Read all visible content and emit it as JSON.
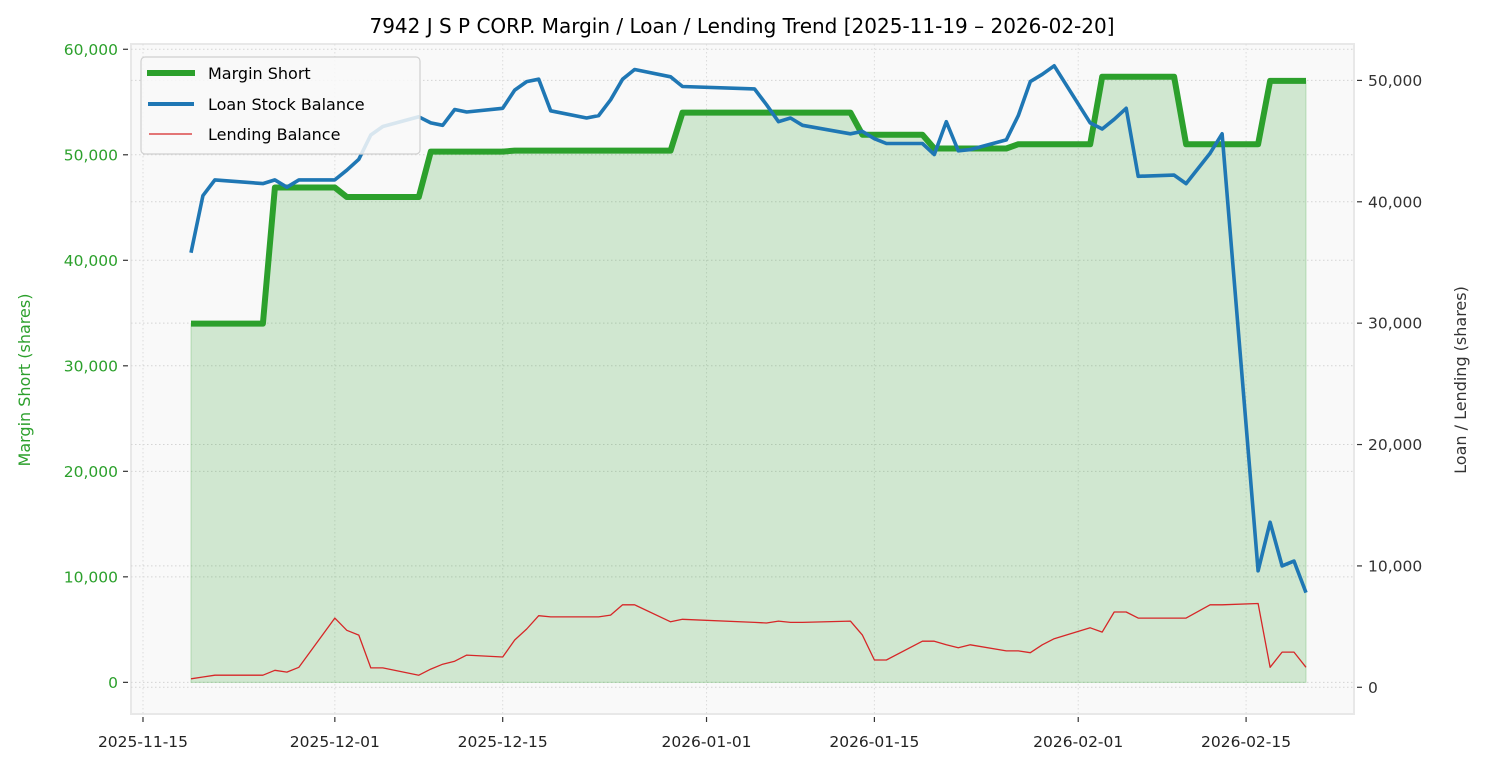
{
  "chart_data": {
    "type": "line",
    "title": "7942 J S P CORP. Margin / Loan / Lending Trend [2025-11-19 – 2026-02-20]",
    "xlabel": "",
    "ylabel_left": "Margin Short (shares)",
    "ylabel_right": "Loan / Lending (shares)",
    "ylim_left": [
      -3000,
      60500
    ],
    "ylim_right": [
      -2200,
      53000
    ],
    "xlim": [
      "2025-11-14",
      "2026-02-24"
    ],
    "left_ticks": [
      0,
      10000,
      20000,
      30000,
      40000,
      50000,
      60000
    ],
    "left_tick_labels": [
      "0",
      "10,000",
      "20,000",
      "30,000",
      "40,000",
      "50,000",
      "60,000"
    ],
    "right_ticks": [
      0,
      10000,
      20000,
      30000,
      40000,
      50000
    ],
    "right_tick_labels": [
      "0",
      "10,000",
      "20,000",
      "30,000",
      "40,000",
      "50,000"
    ],
    "x_ticks": [
      "2025-11-15",
      "2025-12-01",
      "2025-12-15",
      "2026-01-01",
      "2026-01-15",
      "2026-02-01",
      "2026-02-15"
    ],
    "x_tick_labels": [
      "2025-11-15",
      "2025-12-01",
      "2025-12-15",
      "2026-01-01",
      "2026-01-15",
      "2026-02-01",
      "2026-02-15"
    ],
    "grid": true,
    "legend_position": "top-left",
    "colors": {
      "margin": "#2ca02c",
      "loan": "#1f77b4",
      "lending": "#d62728",
      "fill": "#2ca02c",
      "plot_bg": "#f9f9f9"
    },
    "x": [
      "2025-11-19",
      "2025-11-20",
      "2025-11-21",
      "2025-11-25",
      "2025-11-26",
      "2025-11-27",
      "2025-11-28",
      "2025-12-01",
      "2025-12-02",
      "2025-12-03",
      "2025-12-04",
      "2025-12-05",
      "2025-12-08",
      "2025-12-09",
      "2025-12-10",
      "2025-12-11",
      "2025-12-12",
      "2025-12-15",
      "2025-12-16",
      "2025-12-17",
      "2025-12-18",
      "2025-12-19",
      "2025-12-22",
      "2025-12-23",
      "2025-12-24",
      "2025-12-25",
      "2025-12-26",
      "2025-12-29",
      "2025-12-30",
      "2026-01-05",
      "2026-01-06",
      "2026-01-07",
      "2026-01-08",
      "2026-01-09",
      "2026-01-13",
      "2026-01-14",
      "2026-01-15",
      "2026-01-16",
      "2026-01-19",
      "2026-01-20",
      "2026-01-21",
      "2026-01-22",
      "2026-01-23",
      "2026-01-26",
      "2026-01-27",
      "2026-01-28",
      "2026-01-29",
      "2026-01-30",
      "2026-02-02",
      "2026-02-03",
      "2026-02-04",
      "2026-02-05",
      "2026-02-06",
      "2026-02-09",
      "2026-02-10",
      "2026-02-12",
      "2026-02-13",
      "2026-02-16",
      "2026-02-17",
      "2026-02-18",
      "2026-02-19",
      "2026-02-20"
    ],
    "series": [
      {
        "name": "Margin Short",
        "axis": "left",
        "values": [
          34000,
          34000,
          34000,
          34000,
          46900,
          46900,
          46900,
          46900,
          46000,
          46000,
          46000,
          46000,
          46000,
          50300,
          50300,
          50300,
          50300,
          50300,
          50400,
          50400,
          50400,
          50400,
          50400,
          50400,
          50400,
          50400,
          50400,
          50400,
          54000,
          54000,
          54000,
          54000,
          54000,
          54000,
          54000,
          51900,
          51900,
          51900,
          51900,
          50600,
          50600,
          50600,
          50600,
          50600,
          51000,
          51000,
          51000,
          51000,
          51000,
          57400,
          57400,
          57400,
          57400,
          57400,
          51000,
          51000,
          51000,
          51000,
          57000,
          57000,
          57000,
          57000
        ]
      },
      {
        "name": "Loan Stock Balance",
        "axis": "right",
        "values": [
          35800,
          40500,
          41800,
          41500,
          41800,
          41200,
          41800,
          41800,
          42600,
          43500,
          45500,
          46200,
          47000,
          46500,
          46300,
          47600,
          47400,
          47700,
          49200,
          49900,
          50100,
          47500,
          46900,
          47100,
          48400,
          50100,
          50900,
          50300,
          49500,
          49300,
          48000,
          46600,
          46900,
          46300,
          45600,
          45800,
          45200,
          44800,
          44800,
          43900,
          46600,
          44200,
          44300,
          45100,
          47100,
          49900,
          50500,
          51200,
          46500,
          46000,
          46800,
          47700,
          42100,
          42200,
          41500,
          44000,
          45600,
          9600,
          13600,
          10000,
          10400,
          7800
        ]
      },
      {
        "name": "Lending Balance",
        "axis": "right",
        "values": [
          700,
          850,
          1000,
          1000,
          1400,
          1250,
          1650,
          5700,
          4700,
          4300,
          1600,
          1600,
          1000,
          1500,
          1900,
          2150,
          2650,
          2500,
          3900,
          4800,
          5900,
          5800,
          5800,
          5800,
          5950,
          6800,
          6800,
          5400,
          5600,
          5350,
          5300,
          5450,
          5350,
          5350,
          5450,
          4300,
          2250,
          2250,
          3800,
          3800,
          3500,
          3250,
          3500,
          3000,
          3000,
          2850,
          3500,
          4000,
          4900,
          4550,
          6200,
          6200,
          5700,
          5700,
          5700,
          6800,
          6800,
          6900,
          1650,
          2900,
          2900,
          1650
        ]
      }
    ]
  }
}
